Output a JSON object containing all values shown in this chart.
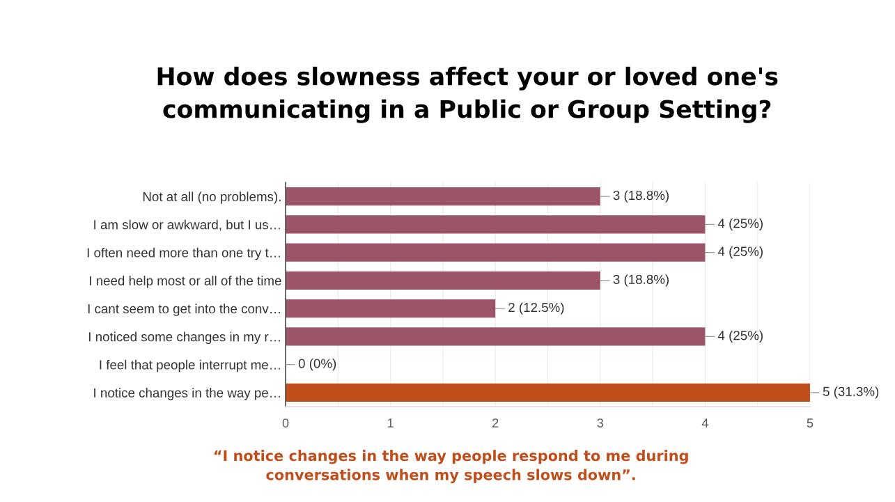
{
  "chart_data": {
    "type": "bar",
    "orientation": "horizontal",
    "title": "How does slowness affect your or loved one's\ncommunicating in a Public or Group Setting?",
    "categories": [
      "Not at all (no problems).",
      "I am slow or awkward, but I us…",
      "I often need more than one try t…",
      "I need help most or all of the time",
      "I cant seem to get into the conv…",
      "I noticed some changes in my r…",
      "I feel that people interrupt me…",
      "I notice changes in the way pe…"
    ],
    "values": [
      3,
      4,
      4,
      3,
      2,
      4,
      0,
      5
    ],
    "colors": [
      "#9c5468",
      "#9c5468",
      "#9c5468",
      "#9c5468",
      "#9c5468",
      "#9c5468",
      "#9c5468",
      "#c04e1a"
    ],
    "value_labels": [
      "3 (18.8%)",
      "4 (25%)",
      "4 (25%)",
      "3 (18.8%)",
      "2 (12.5%)",
      "4 (25%)",
      "0 (0%)",
      "5 (31.3%)"
    ],
    "xlim": [
      0,
      5
    ],
    "xticks": [
      0,
      {
        "value": 0.5,
        "label": null
      },
      1,
      {
        "value": 1.5,
        "label": null
      },
      2,
      {
        "value": 2.5,
        "label": null
      },
      3,
      {
        "value": 3.5,
        "label": null
      },
      4,
      {
        "value": 4.5,
        "label": null
      },
      5
    ],
    "grid": "x",
    "annotations": [
      "“I notice changes in the way people respond to me during\nconversations when my speech slows down”."
    ]
  }
}
